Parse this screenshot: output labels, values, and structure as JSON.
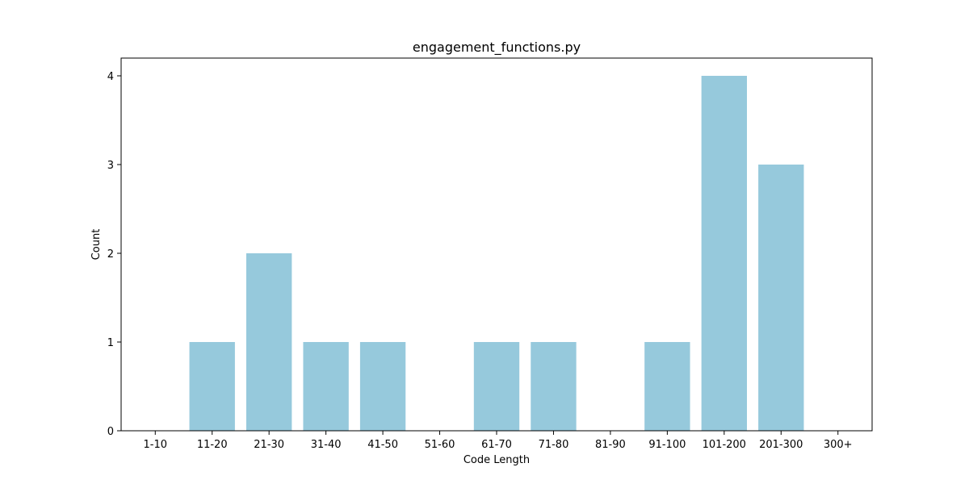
{
  "chart_data": {
    "type": "bar",
    "title": "engagement_functions.py",
    "xlabel": "Code Length",
    "ylabel": "Count",
    "categories": [
      "1-10",
      "11-20",
      "21-30",
      "31-40",
      "41-50",
      "51-60",
      "61-70",
      "71-80",
      "81-90",
      "91-100",
      "101-200",
      "201-300",
      "300+"
    ],
    "values": [
      0,
      1,
      2,
      1,
      1,
      0,
      1,
      1,
      0,
      1,
      4,
      3,
      0
    ],
    "ylim": [
      0,
      4.2
    ],
    "yticks": [
      0,
      1,
      2,
      3,
      4
    ],
    "bar_color": "#96c9dc",
    "grid": false,
    "legend": "none"
  }
}
